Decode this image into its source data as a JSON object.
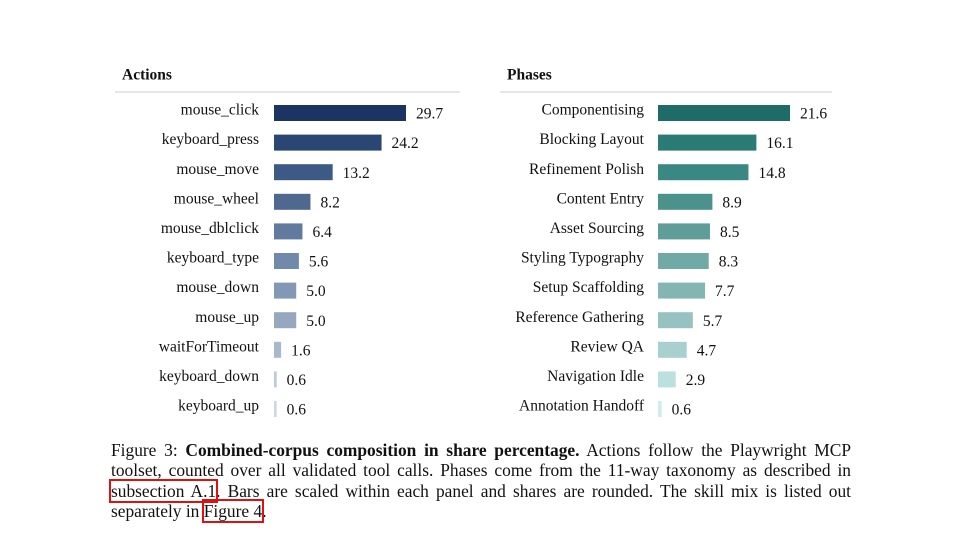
{
  "chart_data": [
    {
      "type": "barh",
      "title": "Actions",
      "categories": [
        "mouse_click",
        "keyboard_press",
        "mouse_move",
        "mouse_wheel",
        "mouse_dblclick",
        "keyboard_type",
        "mouse_down",
        "mouse_up",
        "waitForTimeout",
        "keyboard_down",
        "keyboard_up"
      ],
      "values": [
        29.7,
        24.2,
        13.2,
        8.2,
        6.4,
        5.6,
        5.0,
        5.0,
        1.6,
        0.6,
        0.6
      ],
      "value_labels": [
        "29.7",
        "24.2",
        "13.2",
        "8.2",
        "6.4",
        "5.6",
        "5.0",
        "5.0",
        "1.6",
        "0.6",
        "0.6"
      ],
      "colors": [
        "#1c3461",
        "#2a4673",
        "#3d5a86",
        "#4e6890",
        "#617b9e",
        "#7189aa",
        "#8398b5",
        "#95a8c0",
        "#a9b9cd",
        "#bccbdc",
        "#cdd8e5"
      ]
    },
    {
      "type": "barh",
      "title": "Phases",
      "categories": [
        "Componentising",
        "Blocking Layout",
        "Refinement Polish",
        "Content Entry",
        "Asset Sourcing",
        "Styling Typography",
        "Setup Scaffolding",
        "Reference Gathering",
        "Review QA",
        "Navigation Idle",
        "Annotation Handoff"
      ],
      "values": [
        21.6,
        16.1,
        14.8,
        8.9,
        8.5,
        8.3,
        7.7,
        5.7,
        4.7,
        2.9,
        0.6
      ],
      "value_labels": [
        "21.6",
        "16.1",
        "14.8",
        "8.9",
        "8.5",
        "8.3",
        "7.7",
        "5.7",
        "4.7",
        "2.9",
        "0.6"
      ],
      "colors": [
        "#1e6b67",
        "#2a7a75",
        "#3a8883",
        "#4b918c",
        "#5e9d98",
        "#70a9a5",
        "#83b6b3",
        "#96c3c1",
        "#a8d0cf",
        "#bcdfdf",
        "#cfeceb"
      ]
    }
  ],
  "caption": {
    "label": "Figure 3:",
    "bold": "Combined-corpus composition in share percentage.",
    "text1": "Actions follow the Playwright MCP toolset, counted over all validated tool calls. Phases come from the 11-way taxonomy as described in",
    "link1": "subsection A.1",
    "text2": ". Bars are scaled within each panel and shares are rounded. The skill mix is listed out separately in",
    "link2": "Figure 4",
    "text3": "."
  }
}
